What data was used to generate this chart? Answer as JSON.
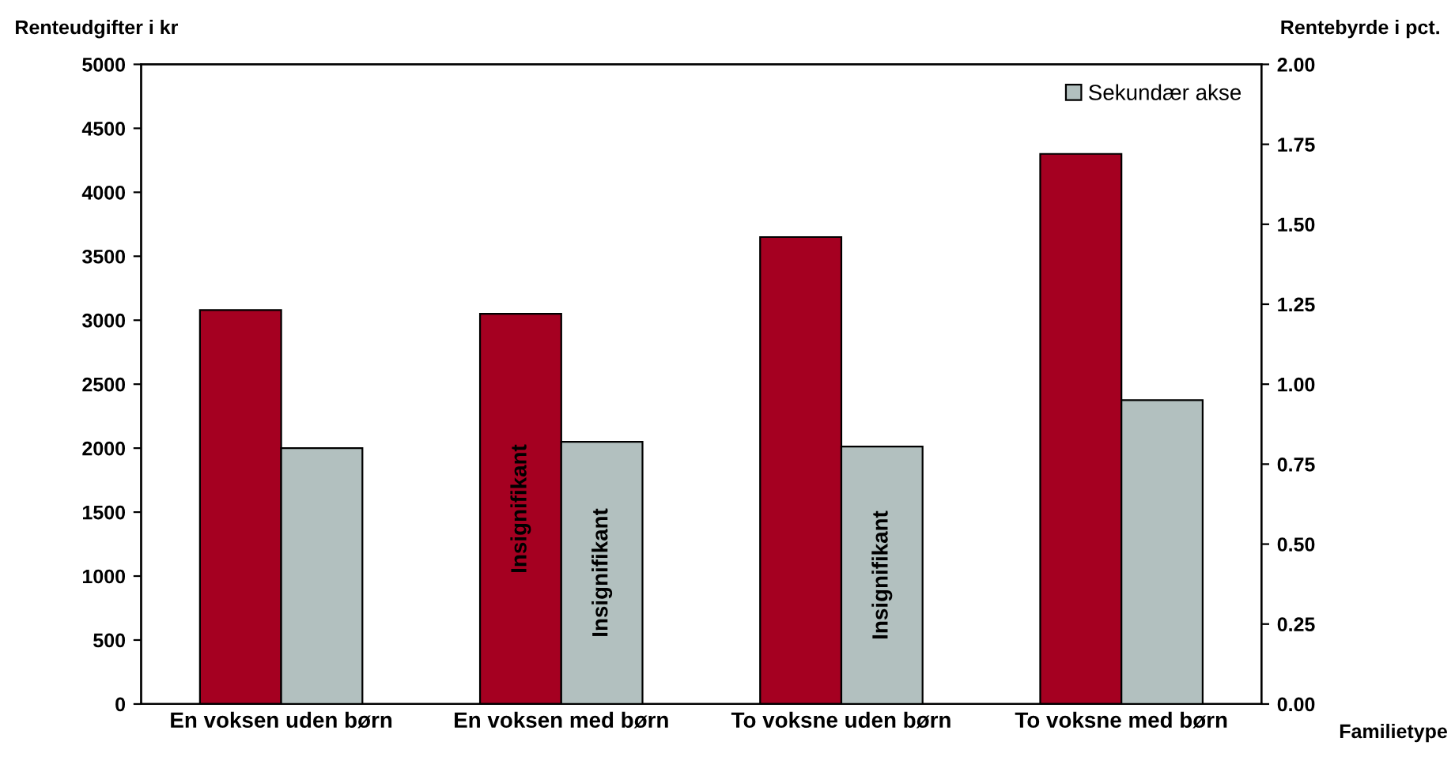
{
  "chart_data": {
    "type": "bar",
    "ylabel": "Renteudgifter i kr",
    "y2label": "Rentebyrde i pct.",
    "xlabel": "Familietype",
    "categories": [
      "En voksen uden børn",
      "En voksen med børn",
      "To voksne uden børn",
      "To voksne med børn"
    ],
    "series": [
      {
        "color": "#a50021",
        "values": [
          3080,
          3050,
          3650,
          4300
        ],
        "value_labels": [
          null,
          "Insignifikant",
          null,
          null
        ]
      },
      {
        "name": "Sekundær akse",
        "color": "#b2c0bf",
        "axis": "y2",
        "values": [
          0.8,
          0.82,
          0.805,
          0.95
        ],
        "value_labels": [
          null,
          "Insignifikant",
          "Insignifikant",
          null
        ]
      }
    ],
    "ylim": [
      0,
      5000
    ],
    "yticks": [
      0,
      500,
      1000,
      1500,
      2000,
      2500,
      3000,
      3500,
      4000,
      4500,
      5000
    ],
    "y2lim": [
      0,
      2
    ],
    "y2ticks": [
      {
        "value": 0,
        "label": "0.00"
      },
      {
        "value": 0.25,
        "label": "0.25"
      },
      {
        "value": 0.5,
        "label": "0.50"
      },
      {
        "value": 0.75,
        "label": "0.75"
      },
      {
        "value": 1,
        "label": "1.00"
      },
      {
        "value": 1.25,
        "label": "1.25"
      },
      {
        "value": 1.5,
        "label": "1.50"
      },
      {
        "value": 1.75,
        "label": "1.75"
      },
      {
        "value": 2,
        "label": "2.00"
      }
    ],
    "grid": false,
    "legend": "top right"
  }
}
